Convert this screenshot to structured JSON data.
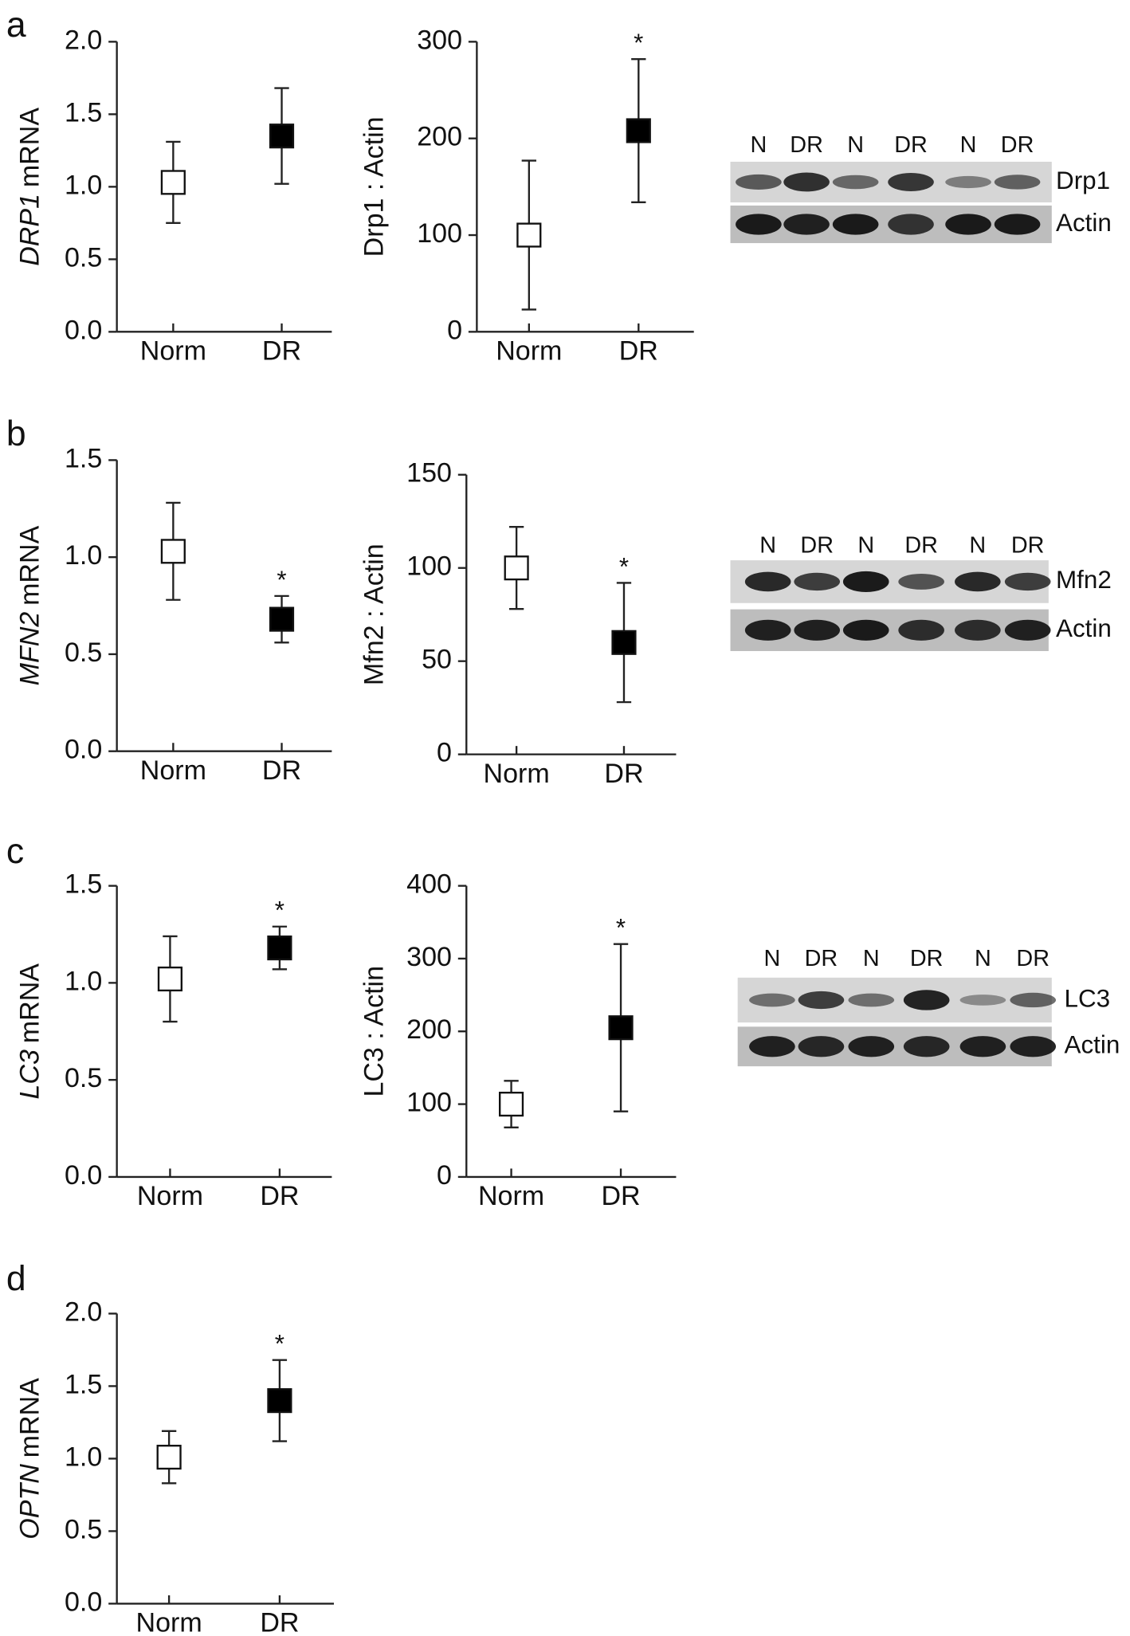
{
  "panel_labels": [
    "a",
    "b",
    "c",
    "d"
  ],
  "chart_data": [
    {
      "type": "errorbar",
      "ylabel_gene": "DRP1",
      "ylabel": "mRNA",
      "categories": [
        "Norm",
        "DR"
      ],
      "values": [
        1.03,
        1.35
      ],
      "errors": [
        0.28,
        0.33
      ],
      "fill": [
        "#ffffff",
        "#000000"
      ],
      "significance": [
        null,
        null
      ],
      "ylim": [
        0,
        2
      ],
      "yticks": [
        {
          "value": 0,
          "label": "0.0"
        },
        {
          "value": 0.5,
          "label": "0.5"
        },
        {
          "value": 1,
          "label": "1.0"
        },
        {
          "value": 1.5,
          "label": "1.5"
        },
        {
          "value": 2,
          "label": "2.0"
        }
      ]
    },
    {
      "type": "errorbar",
      "ylabel": "Drp1 : Actin",
      "categories": [
        "Norm",
        "DR"
      ],
      "values": [
        100,
        208
      ],
      "errors": [
        77,
        74
      ],
      "fill": [
        "#ffffff",
        "#000000"
      ],
      "significance": [
        null,
        "*"
      ],
      "ylim": [
        0,
        300
      ],
      "yticks": [
        0,
        100,
        200,
        300
      ]
    },
    {
      "type": "errorbar",
      "ylabel_gene": "MFN2",
      "ylabel": "mRNA",
      "categories": [
        "Norm",
        "DR"
      ],
      "values": [
        1.03,
        0.68
      ],
      "errors": [
        0.25,
        0.12
      ],
      "fill": [
        "#ffffff",
        "#000000"
      ],
      "significance": [
        null,
        "*"
      ],
      "ylim": [
        0,
        1.5
      ],
      "yticks": [
        {
          "value": 0,
          "label": "0.0"
        },
        {
          "value": 0.5,
          "label": "0.5"
        },
        {
          "value": 1,
          "label": "1.0"
        },
        {
          "value": 1.5,
          "label": "1.5"
        }
      ]
    },
    {
      "type": "errorbar",
      "ylabel": "Mfn2 : Actin",
      "categories": [
        "Norm",
        "DR"
      ],
      "values": [
        100,
        60
      ],
      "errors": [
        22,
        32
      ],
      "fill": [
        "#ffffff",
        "#000000"
      ],
      "significance": [
        null,
        "*"
      ],
      "ylim": [
        0,
        150
      ],
      "yticks": [
        0,
        50,
        100,
        150
      ]
    },
    {
      "type": "errorbar",
      "ylabel_gene": "LC3",
      "ylabel": "mRNA",
      "categories": [
        "Norm",
        "DR"
      ],
      "values": [
        1.02,
        1.18
      ],
      "errors": [
        0.22,
        0.11
      ],
      "fill": [
        "#ffffff",
        "#000000"
      ],
      "significance": [
        null,
        "*"
      ],
      "ylim": [
        0,
        1.5
      ],
      "yticks": [
        {
          "value": 0,
          "label": "0.0"
        },
        {
          "value": 0.5,
          "label": "0.5"
        },
        {
          "value": 1,
          "label": "1.0"
        },
        {
          "value": 1.5,
          "label": "1.5"
        }
      ]
    },
    {
      "type": "errorbar",
      "ylabel": "LC3 : Actin",
      "categories": [
        "Norm",
        "DR"
      ],
      "values": [
        100,
        205
      ],
      "errors": [
        32,
        115
      ],
      "fill": [
        "#ffffff",
        "#000000"
      ],
      "significance": [
        null,
        "*"
      ],
      "ylim": [
        0,
        400
      ],
      "yticks": [
        0,
        100,
        200,
        300,
        400
      ]
    },
    {
      "type": "errorbar",
      "ylabel_gene": "OPTN",
      "ylabel": "mRNA",
      "categories": [
        "Norm",
        "DR"
      ],
      "values": [
        1.01,
        1.4
      ],
      "errors": [
        0.18,
        0.28
      ],
      "fill": [
        "#ffffff",
        "#000000"
      ],
      "significance": [
        null,
        "*"
      ],
      "ylim": [
        0,
        2
      ],
      "yticks": [
        {
          "value": 0,
          "label": "0.0"
        },
        {
          "value": 0.5,
          "label": "0.5"
        },
        {
          "value": 1,
          "label": "1.0"
        },
        {
          "value": 1.5,
          "label": "1.5"
        },
        {
          "value": 2,
          "label": "2.0"
        }
      ]
    }
  ],
  "blots": [
    {
      "lanes": [
        "N",
        "DR",
        "N",
        "DR",
        "N",
        "DR"
      ],
      "rows": [
        "Drp1",
        "Actin"
      ]
    },
    {
      "lanes": [
        "N",
        "DR",
        "N",
        "DR",
        "N",
        "DR"
      ],
      "rows": [
        "Mfn2",
        "Actin"
      ]
    },
    {
      "lanes": [
        "N",
        "DR",
        "N",
        "DR",
        "N",
        "DR"
      ],
      "rows": [
        "LC3",
        "Actin"
      ]
    }
  ]
}
